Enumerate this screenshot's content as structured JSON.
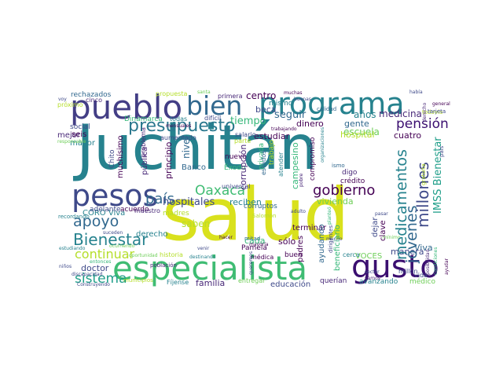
{
  "colors": {
    "c1": "#440154",
    "c2": "#482878",
    "c3": "#3e4989",
    "c4": "#31688e",
    "c5": "#26828e",
    "c6": "#1f9e89",
    "c7": "#35b779",
    "c8": "#6ece58",
    "c9": "#b5de2b",
    "c10": "#fde725"
  },
  "words": {
    "juchitan": "Juchitán",
    "salud": "salud",
    "especialista": "especialista",
    "pueblo": "pueblo",
    "programa": "programa",
    "gusto": "gusto",
    "pesos": "pesos",
    "bien": "bien",
    "presupuesto": "presupuesto",
    "medicamentos": "medicamentos",
    "jovenes": "jóvenes",
    "millones": "millones",
    "gobierno": "gobierno",
    "bienestar": "Bienestar",
    "oaxaca": "Oaxaca",
    "apoyo": "apoyo",
    "pais": "país",
    "sistema": "sistema",
    "continuar": "continuar",
    "pension": "pensión",
    "medicina": "medicina",
    "imss_bienestar": "IMSS Bienestar",
    "hospitales": "hospitales",
    "vivienda": "vivienda",
    "tiempo": "tiempo",
    "centro": "centro",
    "seguir": "seguir",
    "anos": "años",
    "dinero": "dinero",
    "gente": "gente",
    "escuela": "escuela",
    "hospital": "hospital",
    "beca": "beca",
    "estudiar": "estudiar",
    "mismo": "mismo",
    "rechazados": "rechazados",
    "propuesta": "propuesta",
    "primera": "primera",
    "dinamarca": "Dinamarca",
    "todas": "todas",
    "dificil": "difícil",
    "cinco": "cinco",
    "seis": "seis",
    "social": "social",
    "mayor": "mayor",
    "mejor": "mejor",
    "chito": "Chito",
    "muchisimo": "muchísimo",
    "publica": "pública",
    "principio": "principio",
    "nivel": "nivel",
    "banco": "Banco",
    "nuevo": "nuevo",
    "exodo": "Éxodo",
    "corrupcion": "corrupción",
    "privada": "privada",
    "campesino": "campesino",
    "trabajo": "trabajo",
    "cuatro": "cuatro",
    "terminar": "terminar",
    "corruptos": "corruptos",
    "reciben": "reciben",
    "universal": "universal",
    "coro_viva": "CORO Viva",
    "adelante": "adelante",
    "acuerdo": "acuerdo",
    "madres": "madres",
    "maestro": "maestro",
    "saben": "saben",
    "derecho": "derecho",
    "cada": "cada",
    "solo": "sólo",
    "buen": "buen",
    "viva": "Viva",
    "manera": "manera",
    "doctor": "doctor",
    "historia": "historia",
    "medica": "médica",
    "voces": "VOCES",
    "familia": "familia",
    "educacion": "educación",
    "querian": "querían",
    "avanzando": "avanzando",
    "medico": "médico",
    "entregar": "entregar",
    "fijense": "Fíjense",
    "poblacion": "población",
    "municipios": "municipios",
    "beneficiario": "beneficiario",
    "padres": "padres",
    "ayudando": "ayudando",
    "digo": "digo",
    "clave": "clave",
    "dejar": "dejar",
    "credito": "crédito",
    "vida": "vida",
    "pamela": "Pamela",
    "mitad": "mitad",
    "parte": "parte",
    "salario": "salario",
    "aumentado": "aumentado",
    "problema": "problema",
    "todavia": "todavía",
    "calidad": "calidad",
    "cerca": "cerca",
    "recordando": "recordando",
    "salomon": "Salomón",
    "compromiso": "compromiso",
    "millon": "millón",
    "ismo": "ismo",
    "estados": "estados",
    "atender": "atender",
    "general": "general",
    "destinando": "destinando",
    "adulto": "adulto",
    "mayoria": "mayoría",
    "ninos": "niños",
    "discapacidad": "discapacidad",
    "construyendo": "Construyendo",
    "responsable": "responsable",
    "tarjeta": "tarjeta",
    "pobre": "pobre",
    "proximo": "próximo",
    "hacer": "hacer",
    "dirigentes": "dirigentes",
    "organizaciones": "organizaciones",
    "gratuita": "gratuita",
    "pasar": "pasar",
    "pais2": "país",
    "posibilidad": "posibilidad",
    "condiciones": "condiciones",
    "venir": "venir",
    "minimo": "mínimo",
    "sector": "sector",
    "vamos": "vamos",
    "mucho": "mucho",
    "santa": "santa",
    "buenas": "buenas",
    "trabajando": "trabajando",
    "habia": "había",
    "muchas": "muchas",
    "voy": "voy",
    "ayudar": "ayudar",
    "queremos": "queremos",
    "estudiando": "estudiando",
    "ocurriendo": "ocurriendo",
    "mensuales": "mensuales",
    "entonces": "entonces",
    "oportunidad": "oportunidad",
    "suceden": "suceden",
    "derecho2": "derecho",
    "planteo": "planteó"
  }
}
